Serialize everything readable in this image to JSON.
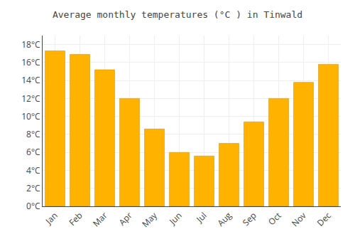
{
  "chart_data": {
    "type": "bar",
    "title": "Average monthly temperatures (°C ) in Tinwald",
    "categories": [
      "Jan",
      "Feb",
      "Mar",
      "Apr",
      "May",
      "Jun",
      "Jul",
      "Aug",
      "Sep",
      "Oct",
      "Nov",
      "Dec"
    ],
    "values": [
      17.3,
      16.9,
      15.2,
      12.0,
      8.6,
      6.0,
      5.6,
      7.0,
      9.4,
      12.0,
      13.8,
      15.8
    ],
    "color": "#FFB300",
    "ylim": [
      0,
      19
    ],
    "yticks": [
      {
        "value": 0,
        "label": "0°C"
      },
      {
        "value": 2,
        "label": "2°C"
      },
      {
        "value": 4,
        "label": "4°C"
      },
      {
        "value": 6,
        "label": "6°C"
      },
      {
        "value": 8,
        "label": "8°C"
      },
      {
        "value": 10,
        "label": "10°C"
      },
      {
        "value": 12,
        "label": "12°C"
      },
      {
        "value": 14,
        "label": "14°C"
      },
      {
        "value": 16,
        "label": "16°C"
      },
      {
        "value": 18,
        "label": "18°C"
      }
    ],
    "grid": true
  }
}
